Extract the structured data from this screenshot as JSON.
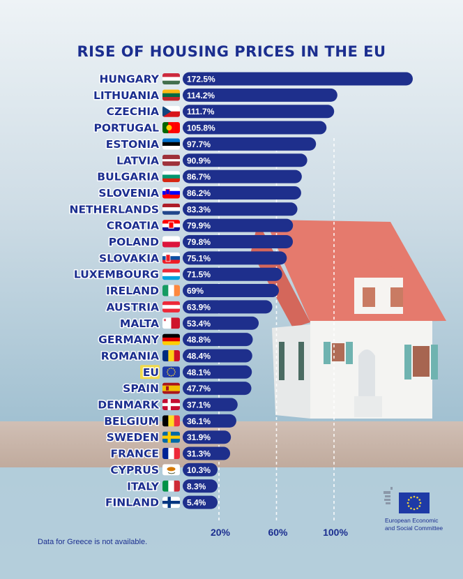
{
  "title": "RISE OF HOUSING PRICES IN THE EU",
  "footnote": "Data for Greece is not available.",
  "logo": {
    "line1": "European Economic",
    "line2": "and Social Committee"
  },
  "colors": {
    "bar": "#1e2f8c",
    "title": "#1b2e8f",
    "eu_highlight": "#f1d94a",
    "roof": "#e4776a",
    "background_top": "#e8eef3",
    "background_bottom": "#8fb4c8"
  },
  "chart_data": {
    "type": "bar",
    "orientation": "horizontal",
    "title": "RISE OF HOUSING PRICES IN THE EU",
    "categories": [
      "HUNGARY",
      "LITHUANIA",
      "CZECHIA",
      "PORTUGAL",
      "ESTONIA",
      "LATVIA",
      "BULGARIA",
      "SLOVENIA",
      "NETHERLANDS",
      "CROATIA",
      "POLAND",
      "SLOVAKIA",
      "LUXEMBOURG",
      "IRELAND",
      "AUSTRIA",
      "MALTA",
      "GERMANY",
      "ROMANIA",
      "EU",
      "SPAIN",
      "DENMARK",
      "BELGIUM",
      "SWEDEN",
      "FRANCE",
      "CYPRUS",
      "ITALY",
      "FINLAND"
    ],
    "values": [
      172.5,
      114.2,
      111.7,
      105.8,
      97.7,
      90.9,
      86.7,
      86.2,
      83.3,
      79.9,
      79.8,
      75.1,
      71.5,
      69,
      63.9,
      53.4,
      48.8,
      48.4,
      48.1,
      47.7,
      37.1,
      36.1,
      31.9,
      31.3,
      10.3,
      8.3,
      5.4
    ],
    "value_labels": [
      "172.5%",
      "114.2%",
      "111.7%",
      "105.8%",
      "97.7%",
      "90.9%",
      "86.7%",
      "86.2%",
      "83.3%",
      "79.9%",
      "79.8%",
      "75.1%",
      "71.5%",
      "69%",
      "63.9%",
      "53.4%",
      "48.8%",
      "48.4%",
      "48.1%",
      "47.7%",
      "37.1%",
      "36.1%",
      "31.9%",
      "31.3%",
      "10.3%",
      "8.3%",
      "5.4%"
    ],
    "flag_icons": [
      "hungary-flag",
      "lithuania-flag",
      "czechia-flag",
      "portugal-flag",
      "estonia-flag",
      "latvia-flag",
      "bulgaria-flag",
      "slovenia-flag",
      "netherlands-flag",
      "croatia-flag",
      "poland-flag",
      "slovakia-flag",
      "luxembourg-flag",
      "ireland-flag",
      "austria-flag",
      "malta-flag",
      "germany-flag",
      "romania-flag",
      "eu-flag",
      "spain-flag",
      "denmark-flag",
      "belgium-flag",
      "sweden-flag",
      "france-flag",
      "cyprus-flag",
      "italy-flag",
      "finland-flag"
    ],
    "highlighted_category": "EU",
    "gridlines": [
      20,
      60,
      100
    ],
    "gridline_labels": [
      "20%",
      "60%",
      "100%"
    ],
    "grid_style": "dashed white vertical lines",
    "xlabel": "",
    "ylabel": ""
  }
}
